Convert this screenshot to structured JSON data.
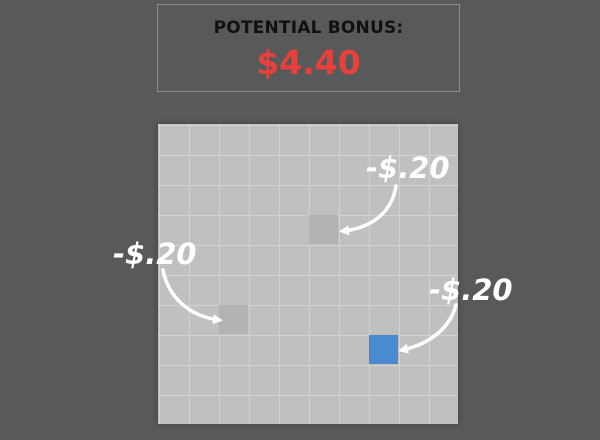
{
  "header": {
    "label": "POTENTIAL BONUS:",
    "value": "$4.40",
    "value_color": "#e8413c"
  },
  "grid": {
    "rows": 10,
    "columns": 10,
    "background_color": "#c0c0c0",
    "line_color": "#d2d2d2",
    "penalty_cell_color": "#b3b3b3",
    "agent_cell_color": "#4a8ad0"
  },
  "annotations": [
    {
      "id": "top",
      "text": "-$.20",
      "points_to": "penalty-cell-upper"
    },
    {
      "id": "left",
      "text": "-$.20",
      "points_to": "penalty-cell-lower"
    },
    {
      "id": "right",
      "text": "-$.20",
      "points_to": "agent-cell"
    }
  ]
}
